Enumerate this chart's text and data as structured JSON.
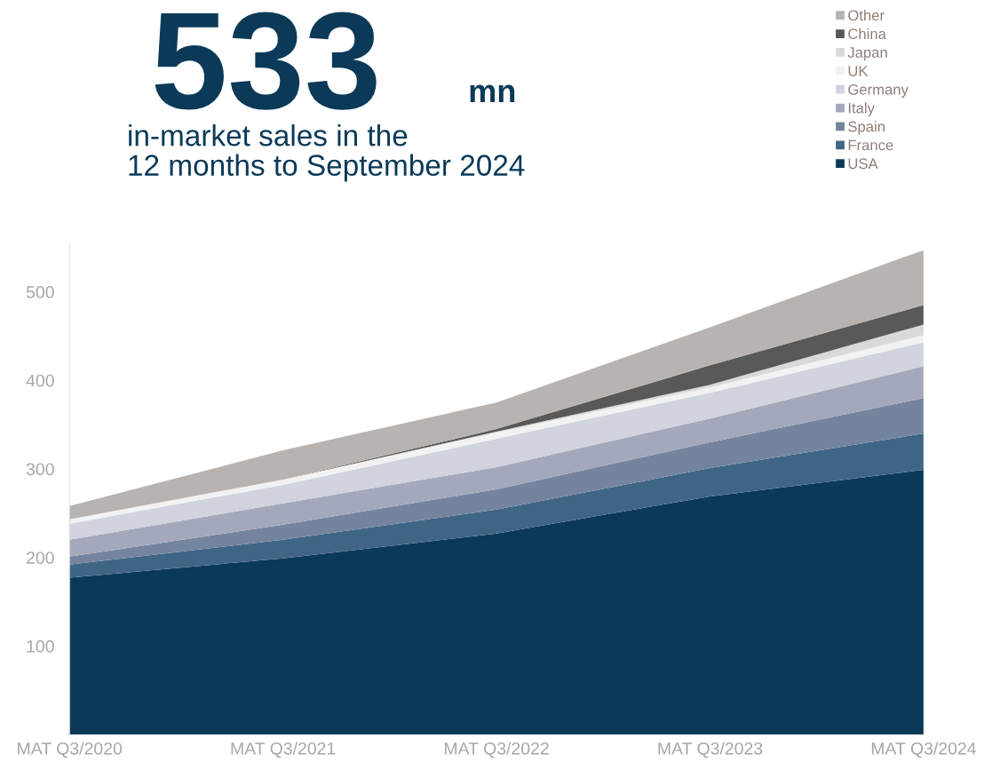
{
  "chart_data": {
    "type": "area",
    "stacked": true,
    "title": "533",
    "subtitle": "in-market sales in the\n12 months to September 2024",
    "annotations": [
      "mn"
    ],
    "categories": [
      "MAT Q3/2020",
      "MAT Q3/2021",
      "MAT Q3/2022",
      "MAT Q3/2023",
      "MAT Q3/2024"
    ],
    "series": [
      {
        "name": "USA",
        "color": "#0b3a58",
        "values": [
          177,
          199,
          227,
          269,
          299
        ]
      },
      {
        "name": "France",
        "color": "#3f6585",
        "values": [
          15,
          21,
          27,
          32,
          41
        ]
      },
      {
        "name": "Spain",
        "color": "#74849e",
        "values": [
          9,
          17,
          23,
          29,
          40
        ]
      },
      {
        "name": "Italy",
        "color": "#a3a9bb",
        "values": [
          19,
          24,
          25,
          27,
          36
        ]
      },
      {
        "name": "Germany",
        "color": "#d1d4de",
        "values": [
          18,
          21,
          32,
          29,
          27
        ]
      },
      {
        "name": "UK",
        "color": "#f2f2f2",
        "values": [
          5,
          6,
          7,
          6,
          8
        ]
      },
      {
        "name": "Japan",
        "color": "#d9d9d9",
        "values": [
          0,
          0,
          1,
          3,
          12
        ]
      },
      {
        "name": "China",
        "color": "#595959",
        "values": [
          0,
          0,
          3,
          22,
          22
        ]
      },
      {
        "name": "Other",
        "color": "#b7b3b1",
        "values": [
          15,
          33,
          30,
          43,
          62
        ]
      }
    ],
    "ylim": [
      0,
      555
    ],
    "yticks": [
      100,
      200,
      300,
      400,
      500
    ],
    "grid": false,
    "legend": "top right"
  }
}
